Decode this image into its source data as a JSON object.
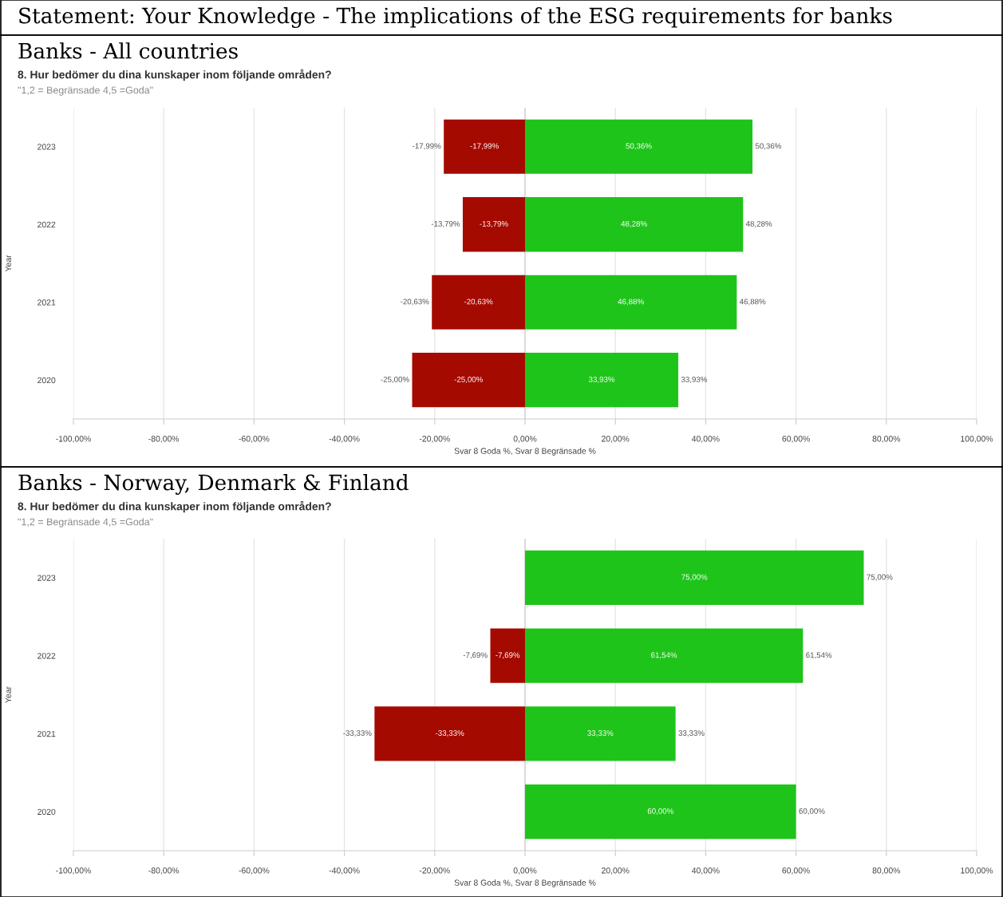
{
  "chart_data": [
    {
      "type": "bar",
      "orientation": "horizontal",
      "stacked": true,
      "title": "Banks - All countries",
      "subtitle": "8. Hur bedömer du dina kunskaper inom följande områden?",
      "annotations": [
        "Statement: Your Knowledge - The implications of the ESG requirements for banks",
        "\"1,2 = Begränsade 4,5 =Goda\""
      ],
      "xlabel": "Svar 8 Goda %, Svar 8 Begränsade %",
      "ylabel": "Year",
      "categories": [
        "2023",
        "2022",
        "2021",
        "2020"
      ],
      "series": [
        {
          "color": "#a50a00",
          "values": [
            -17.99,
            -13.79,
            -20.63,
            -25.0
          ],
          "value_labels": [
            "-17,99%",
            "-13,79%",
            "-20,63%",
            "-25,00%"
          ]
        },
        {
          "color": "#1ec41a",
          "values": [
            50.36,
            48.28,
            46.88,
            33.93
          ],
          "value_labels": [
            "50,36%",
            "48,28%",
            "46,88%",
            "33,93%"
          ]
        }
      ],
      "xlim": [
        -100,
        100
      ],
      "xticks": [
        {
          "value": -100,
          "label": "-100,00%"
        },
        {
          "value": -80,
          "label": "-80,00%"
        },
        {
          "value": -60,
          "label": "-60,00%"
        },
        {
          "value": -40,
          "label": "-40,00%"
        },
        {
          "value": -20,
          "label": "-20,00%"
        },
        {
          "value": 0,
          "label": "0,00%"
        },
        {
          "value": 20,
          "label": "20,00%"
        },
        {
          "value": 40,
          "label": "40,00%"
        },
        {
          "value": 60,
          "label": "60,00%"
        },
        {
          "value": 80,
          "label": "80,00%"
        },
        {
          "value": 100,
          "label": "100,00%"
        }
      ],
      "grid": "x",
      "legend": false
    },
    {
      "type": "bar",
      "orientation": "horizontal",
      "stacked": true,
      "title": "Banks - Norway, Denmark & Finland",
      "subtitle": "8. Hur bedömer du dina kunskaper inom följande områden?",
      "annotations": [
        "\"1,2 = Begränsade 4,5 =Goda\""
      ],
      "xlabel": "Svar 8 Goda %, Svar 8 Begränsade %",
      "ylabel": "Year",
      "categories": [
        "2023",
        "2022",
        "2021",
        "2020"
      ],
      "series": [
        {
          "color": "#a50a00",
          "values": [
            null,
            -7.69,
            -33.33,
            null
          ],
          "value_labels": [
            null,
            "-7,69%",
            "-33,33%",
            null
          ]
        },
        {
          "color": "#1ec41a",
          "values": [
            75.0,
            61.54,
            33.33,
            60.0
          ],
          "value_labels": [
            "75,00%",
            "61,54%",
            "33,33%",
            "60,00%"
          ]
        }
      ],
      "xlim": [
        -100,
        100
      ],
      "xticks": [
        {
          "value": -100,
          "label": "-100,00%"
        },
        {
          "value": -80,
          "label": "-80,00%"
        },
        {
          "value": -60,
          "label": "-60,00%"
        },
        {
          "value": -40,
          "label": "-40,00%"
        },
        {
          "value": -20,
          "label": "-20,00%"
        },
        {
          "value": 0,
          "label": "0,00%"
        },
        {
          "value": 20,
          "label": "20,00%"
        },
        {
          "value": 40,
          "label": "40,00%"
        },
        {
          "value": 60,
          "label": "60,00%"
        },
        {
          "value": 80,
          "label": "80,00%"
        },
        {
          "value": 100,
          "label": "100,00%"
        }
      ],
      "grid": "x",
      "legend": false
    }
  ]
}
